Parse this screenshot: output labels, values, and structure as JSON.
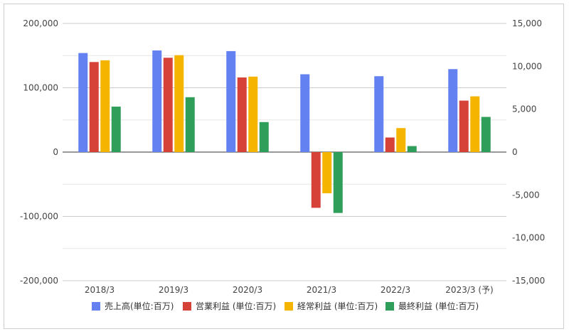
{
  "chart_data": {
    "type": "bar",
    "categories": [
      "2018/3",
      "2019/3",
      "2020/3",
      "2021/3",
      "2022/3",
      "2023/3 (予)"
    ],
    "series": [
      {
        "name": "売上高(単位:百万)",
        "axis": "left",
        "color": "#6381f0",
        "values": [
          154000,
          158000,
          157000,
          121000,
          118000,
          129000
        ]
      },
      {
        "name": "営業利益 (単位:百万)",
        "axis": "right",
        "color": "#d64238",
        "values": [
          10500,
          11000,
          8700,
          -6500,
          1700,
          6000
        ]
      },
      {
        "name": "経常利益 (単位:百万)",
        "axis": "right",
        "color": "#f4b400",
        "values": [
          10700,
          11300,
          8800,
          -4800,
          2800,
          6500
        ]
      },
      {
        "name": "最終利益 (単位:百万)",
        "axis": "right",
        "color": "#2f9e5b",
        "values": [
          5300,
          6400,
          3500,
          -7100,
          700,
          4100
        ]
      }
    ],
    "left_axis": {
      "min": -200000,
      "max": 200000,
      "ticks": [
        "200,000",
        "100,000",
        "0",
        "-100,000",
        "-200,000"
      ],
      "tick_values": [
        200000,
        100000,
        0,
        -100000,
        -200000
      ]
    },
    "right_axis": {
      "min": -15000,
      "max": 15000,
      "ticks": [
        "15,000",
        "10,000",
        "5,000",
        "0",
        "-5,000",
        "-10,000",
        "-15,000"
      ],
      "tick_values": [
        15000,
        10000,
        5000,
        0,
        -5000,
        -10000,
        -15000
      ]
    },
    "grid": true,
    "legend_position": "bottom"
  }
}
